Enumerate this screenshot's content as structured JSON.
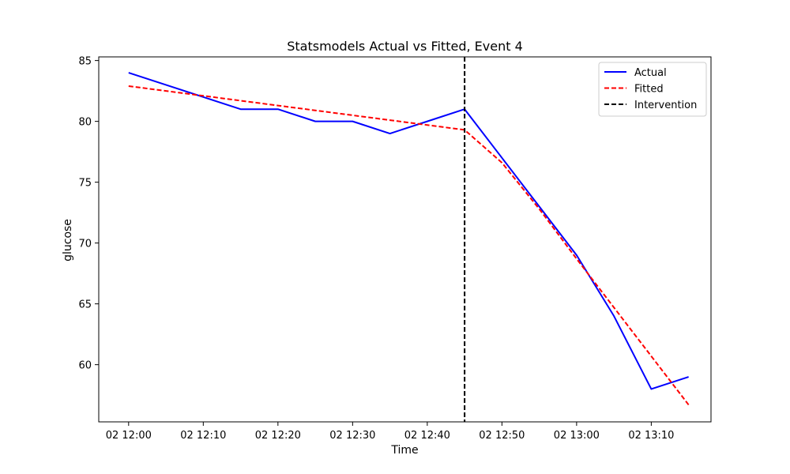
{
  "chart_data": {
    "type": "line",
    "title": "Statsmodels Actual vs Fitted, Event 4",
    "xlabel": "Time",
    "ylabel": "glucose",
    "x": [
      "02 12:00",
      "02 12:05",
      "02 12:10",
      "02 12:15",
      "02 12:20",
      "02 12:25",
      "02 12:30",
      "02 12:35",
      "02 12:40",
      "02 12:45",
      "02 12:50",
      "02 12:55",
      "02 13:00",
      "02 13:05",
      "02 13:10",
      "02 13:15"
    ],
    "x_ticks": [
      "02 12:00",
      "02 12:10",
      "02 12:20",
      "02 12:30",
      "02 12:40",
      "02 12:50",
      "02 13:00",
      "02 13:10"
    ],
    "y_ticks": [
      60,
      65,
      70,
      75,
      80,
      85
    ],
    "ylim": [
      55.3,
      85.3
    ],
    "xlim": [
      "02 11:56",
      "02 13:18"
    ],
    "series": [
      {
        "name": "Actual",
        "color": "#0000ff",
        "style": "solid",
        "values": [
          84,
          83,
          82,
          81,
          81,
          80,
          80,
          79,
          80,
          81,
          77,
          73,
          69,
          64,
          58,
          59
        ]
      },
      {
        "name": "Fitted",
        "color": "#ff0000",
        "style": "dashed",
        "values": [
          82.9,
          82.5,
          82.1,
          81.7,
          81.3,
          80.9,
          80.5,
          80.1,
          79.7,
          79.3,
          76.6,
          72.8,
          68.7,
          64.7,
          60.7,
          56.7
        ]
      }
    ],
    "vlines": [
      {
        "name": "Intervention",
        "x": "02 12:45",
        "color": "#000000",
        "style": "dashed"
      }
    ],
    "legend": {
      "position": "top-right",
      "entries": [
        "Actual",
        "Fitted",
        "Intervention"
      ]
    },
    "grid": false
  }
}
